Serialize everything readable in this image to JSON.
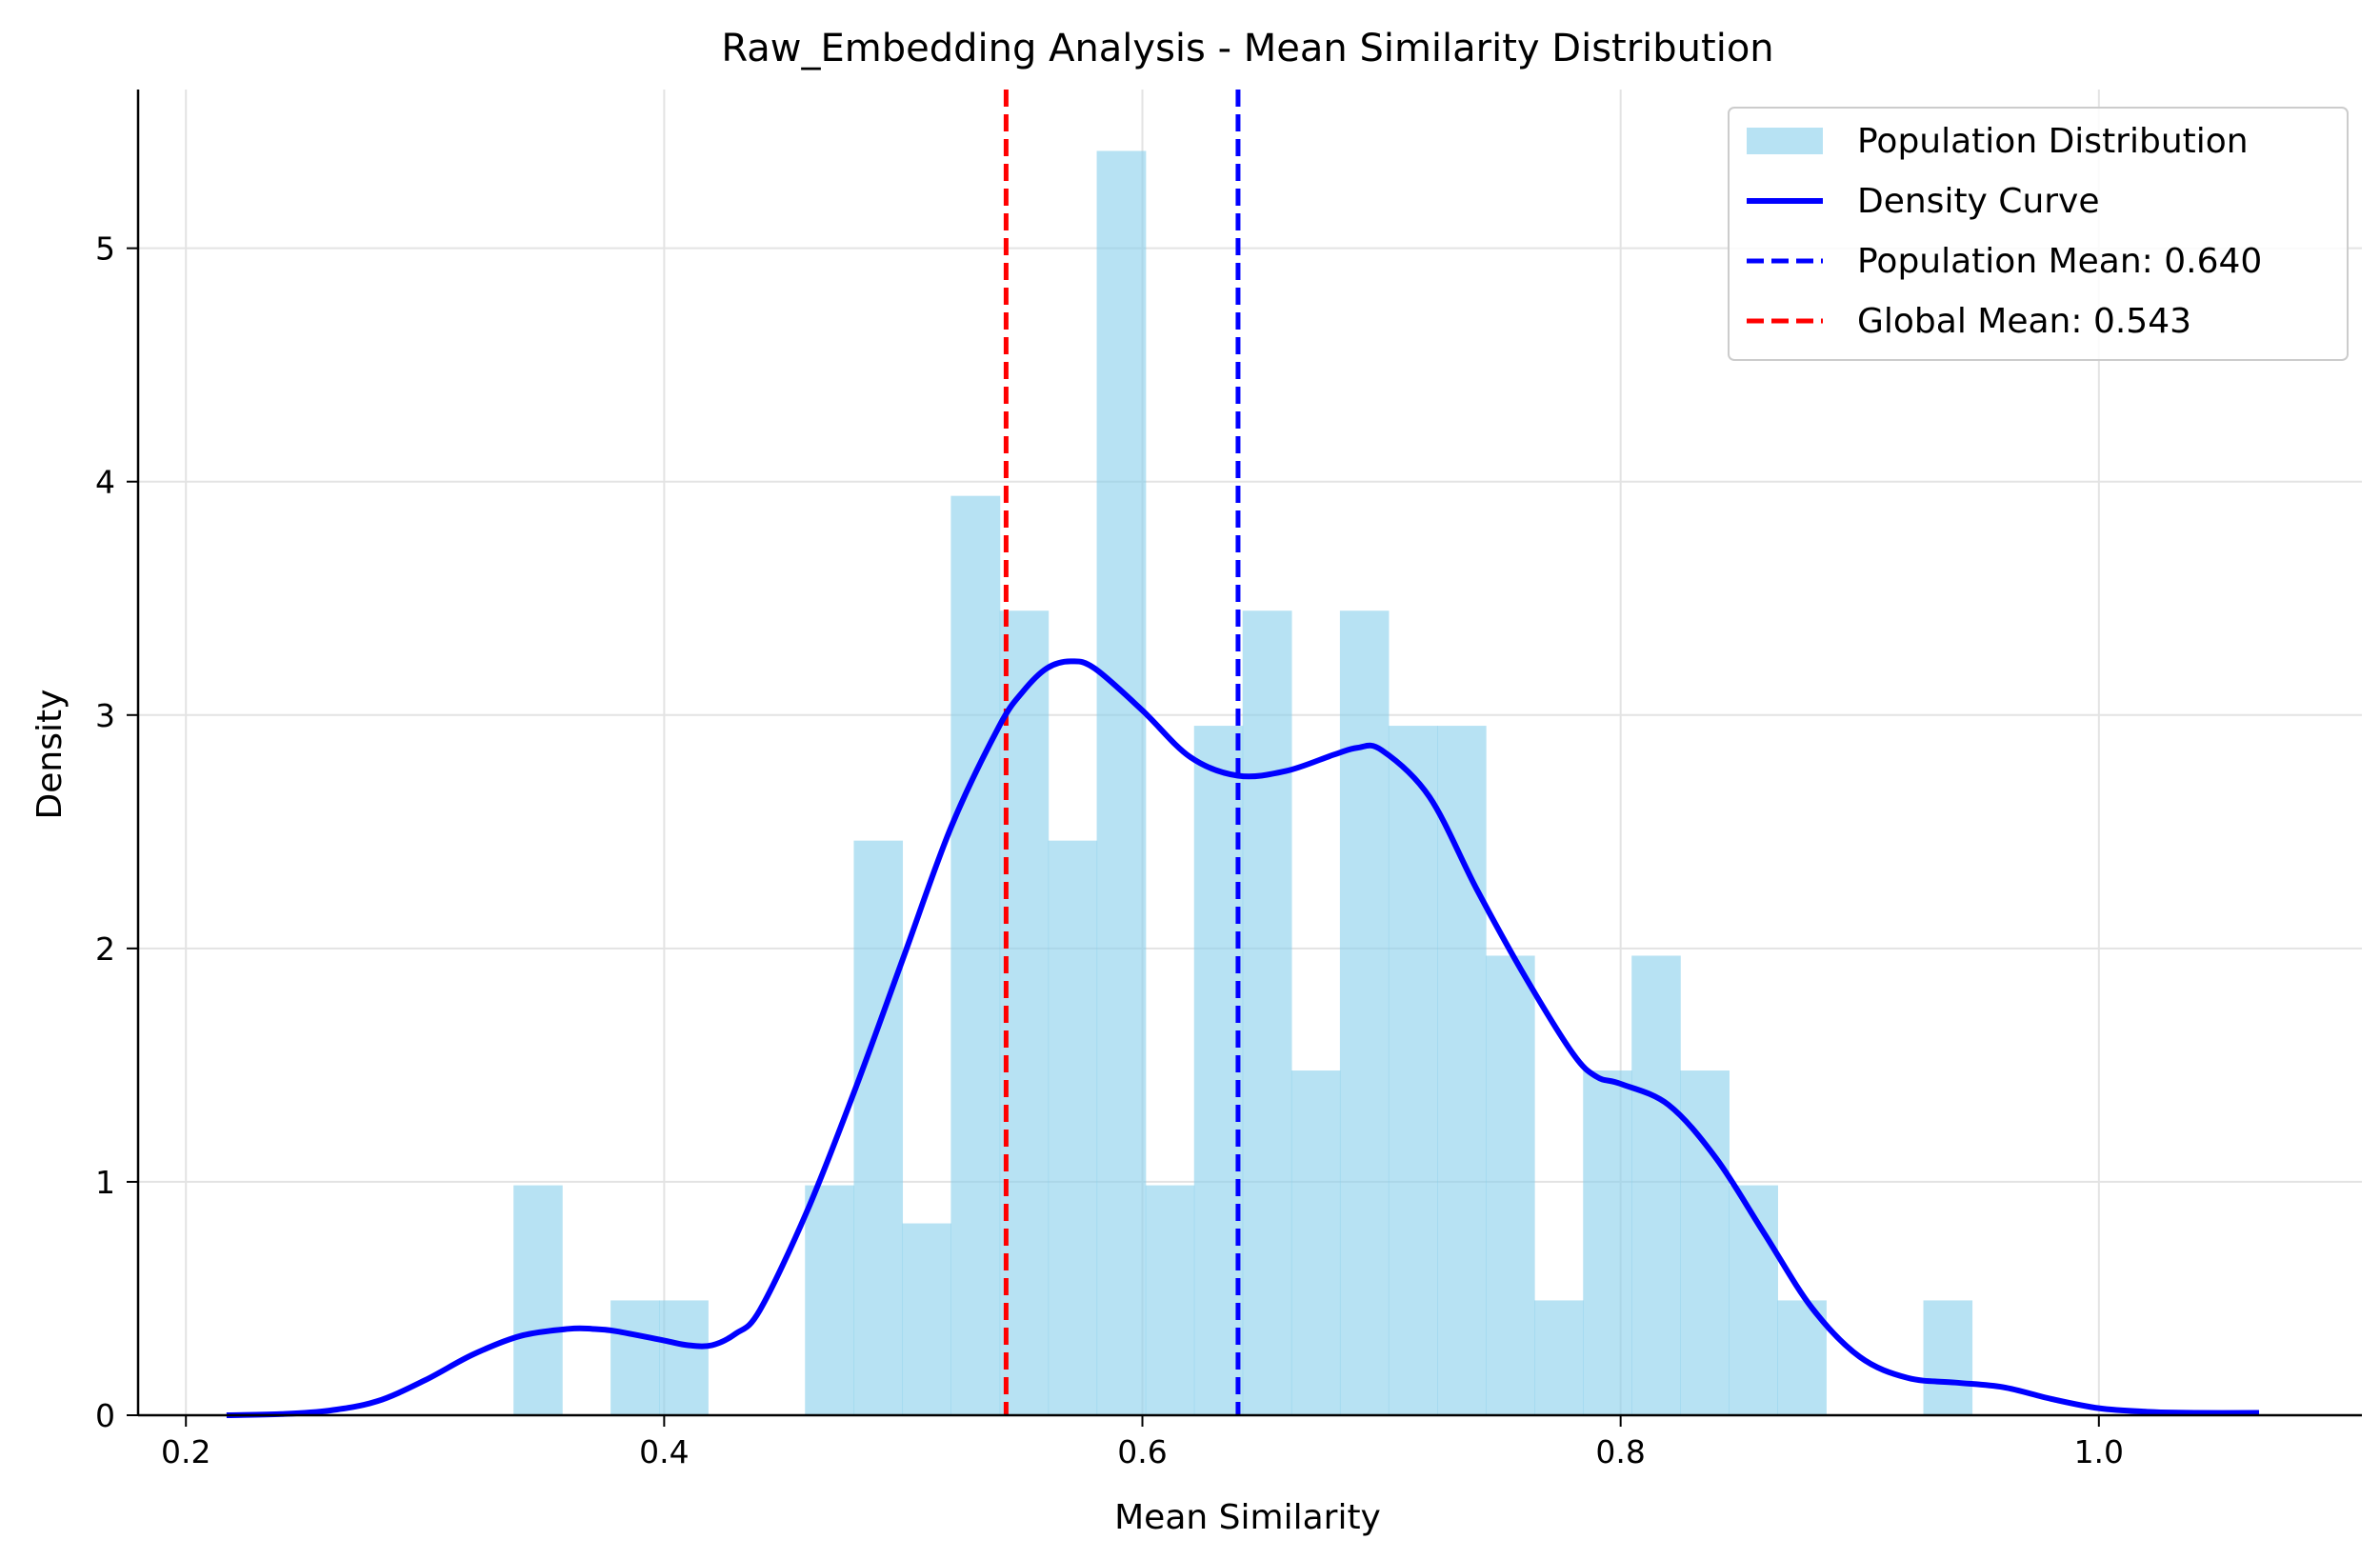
{
  "chart_data": {
    "type": "bar",
    "title": "Raw_Embedding Analysis - Mean Similarity Distribution",
    "xlabel": "Mean Similarity",
    "ylabel": "Density",
    "xlim": [
      0.18,
      1.11
    ],
    "ylim": [
      0,
      5.68
    ],
    "xticks": [
      "0.2",
      "0.4",
      "0.6",
      "0.8",
      "1.0"
    ],
    "xtick_values": [
      0.2,
      0.4,
      0.6,
      0.8,
      1.0
    ],
    "yticks": [
      "0",
      "1",
      "2",
      "3",
      "4",
      "5"
    ],
    "ytick_values": [
      0,
      1,
      2,
      3,
      4,
      5
    ],
    "grid": true,
    "legend_position": "top-right",
    "colors": {
      "histogram": "#87ceeb",
      "density": "#0000ff",
      "population_mean": "#0000ff",
      "global_mean": "#ff0000"
    },
    "histogram": {
      "name": "Population Distribution",
      "bins": [
        {
          "x0": 0.337,
          "x1": 0.3573,
          "density": 0.985
        },
        {
          "x0": 0.3573,
          "x1": 0.3776,
          "density": 0.0
        },
        {
          "x0": 0.3776,
          "x1": 0.3979,
          "density": 0.492
        },
        {
          "x0": 0.3979,
          "x1": 0.4183,
          "density": 0.492
        },
        {
          "x0": 0.4183,
          "x1": 0.4386,
          "density": 0.0
        },
        {
          "x0": 0.4386,
          "x1": 0.4589,
          "density": 0.0
        },
        {
          "x0": 0.4589,
          "x1": 0.4793,
          "density": 0.985
        },
        {
          "x0": 0.4793,
          "x1": 0.4996,
          "density": 2.462
        },
        {
          "x0": 0.4996,
          "x1": 0.5199,
          "density": 0.822
        },
        {
          "x0": 0.5199,
          "x1": 0.5403,
          "density": 3.939
        },
        {
          "x0": 0.5403,
          "x1": 0.5606,
          "density": 3.447
        },
        {
          "x0": 0.5606,
          "x1": 0.5809,
          "density": 2.462
        },
        {
          "x0": 0.5809,
          "x1": 0.6013,
          "density": 5.417
        },
        {
          "x0": 0.6013,
          "x1": 0.6216,
          "density": 0.985
        },
        {
          "x0": 0.6216,
          "x1": 0.6419,
          "density": 2.954
        },
        {
          "x0": 0.6419,
          "x1": 0.6623,
          "density": 3.447
        },
        {
          "x0": 0.6623,
          "x1": 0.6826,
          "density": 1.477
        },
        {
          "x0": 0.6826,
          "x1": 0.7029,
          "density": 3.447
        },
        {
          "x0": 0.7029,
          "x1": 0.7233,
          "density": 2.954
        },
        {
          "x0": 0.7233,
          "x1": 0.7436,
          "density": 2.954
        },
        {
          "x0": 0.7436,
          "x1": 0.7639,
          "density": 1.969
        },
        {
          "x0": 0.7639,
          "x1": 0.7843,
          "density": 0.492
        },
        {
          "x0": 0.7843,
          "x1": 0.8046,
          "density": 1.477
        },
        {
          "x0": 0.8046,
          "x1": 0.8249,
          "density": 1.969
        },
        {
          "x0": 0.8249,
          "x1": 0.8453,
          "density": 1.477
        },
        {
          "x0": 0.8453,
          "x1": 0.8656,
          "density": 0.985
        },
        {
          "x0": 0.8656,
          "x1": 0.8859,
          "density": 0.492
        },
        {
          "x0": 0.8859,
          "x1": 0.9063,
          "density": 0.0
        },
        {
          "x0": 0.9063,
          "x1": 0.9266,
          "density": 0.0
        },
        {
          "x0": 0.9266,
          "x1": 0.9469,
          "density": 0.492
        }
      ]
    },
    "density_curve": {
      "name": "Density Curve",
      "x": [
        0.217,
        0.24,
        0.26,
        0.28,
        0.3,
        0.32,
        0.34,
        0.36,
        0.37,
        0.38,
        0.4,
        0.41,
        0.42,
        0.43,
        0.44,
        0.46,
        0.48,
        0.5,
        0.52,
        0.54,
        0.55,
        0.56,
        0.57,
        0.58,
        0.6,
        0.62,
        0.64,
        0.66,
        0.68,
        0.69,
        0.7,
        0.72,
        0.74,
        0.76,
        0.78,
        0.79,
        0.8,
        0.82,
        0.84,
        0.86,
        0.88,
        0.9,
        0.92,
        0.94,
        0.96,
        0.98,
        1.0,
        1.02,
        1.04,
        1.067
      ],
      "y": [
        0.0,
        0.005,
        0.02,
        0.06,
        0.15,
        0.26,
        0.34,
        0.37,
        0.37,
        0.36,
        0.32,
        0.3,
        0.3,
        0.35,
        0.45,
        0.88,
        1.4,
        1.96,
        2.52,
        2.95,
        3.1,
        3.2,
        3.23,
        3.2,
        3.02,
        2.82,
        2.74,
        2.76,
        2.83,
        2.86,
        2.85,
        2.65,
        2.25,
        1.88,
        1.55,
        1.45,
        1.42,
        1.33,
        1.1,
        0.78,
        0.46,
        0.25,
        0.16,
        0.14,
        0.12,
        0.07,
        0.03,
        0.015,
        0.01,
        0.01
      ]
    },
    "reference_lines": [
      {
        "name": "Population Mean: 0.640",
        "x": 0.64
      },
      {
        "name": "Global Mean: 0.543",
        "x": 0.543
      }
    ],
    "legend": [
      {
        "label": "Population Distribution",
        "kind": "patch"
      },
      {
        "label": "Density Curve",
        "kind": "line"
      },
      {
        "label": "Population Mean: 0.640",
        "kind": "dashed-blue"
      },
      {
        "label": "Global Mean: 0.543",
        "kind": "dashed-red"
      }
    ]
  }
}
